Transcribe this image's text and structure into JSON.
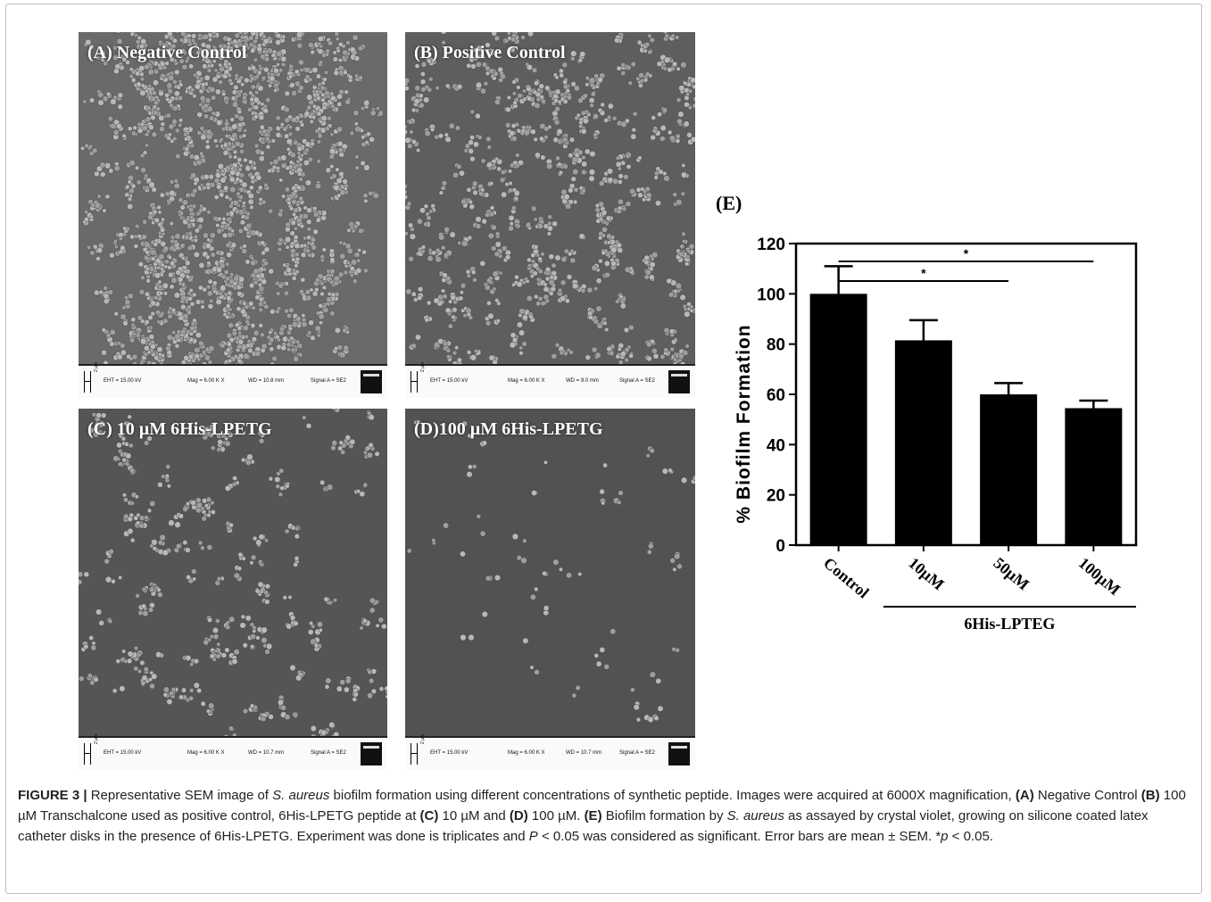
{
  "panels": [
    {
      "label": "(A) Negative Control",
      "databar": {
        "eht": "EHT = 15.00 kV",
        "mag": "Mag = 6.00 K X",
        "wd": "WD = 10.8 mm",
        "signal": "Signal A = SE2",
        "scale": "2 µm"
      }
    },
    {
      "label": "(B) Positive Control",
      "databar": {
        "eht": "EHT = 15.00 kV",
        "mag": "Mag = 6.00 K X",
        "wd": "WD = 9.0 mm",
        "signal": "Signal A = SE2",
        "scale": "2 µm"
      }
    },
    {
      "label": "(C) 10 µM 6His-LPETG",
      "databar": {
        "eht": "EHT = 15.00 kV",
        "mag": "Mag = 6.00 K X",
        "wd": "WD = 10.7 mm",
        "signal": "Signal A = SE2",
        "scale": "2 µm"
      }
    },
    {
      "label": "(D)100 µM 6His-LPETG",
      "databar": {
        "eht": "EHT = 15.00 kV",
        "mag": "Mag = 6.00 K X",
        "wd": "WD = 10.7 mm",
        "signal": "Signal A = SE2",
        "scale": "2 µm"
      }
    }
  ],
  "chart_data": {
    "type": "bar",
    "panel_label": "(E)",
    "ylabel": "% Biofilm Formation",
    "ylim": [
      0,
      120
    ],
    "yticks": [
      0,
      20,
      40,
      60,
      80,
      100,
      120
    ],
    "categories": [
      "Control",
      "10µM",
      "50µM",
      "100µM"
    ],
    "values": [
      100,
      81.5,
      60,
      54.5
    ],
    "errors": [
      11,
      8,
      4.5,
      3
    ],
    "group_label": "6His-LPTEG",
    "significance": [
      {
        "from": "Control",
        "to": "50µM",
        "label": "*"
      },
      {
        "from": "Control",
        "to": "100µM",
        "label": "*"
      }
    ],
    "bar_color": "#000000"
  },
  "caption": {
    "figure_label": "FIGURE 3 |",
    "segments": [
      {
        "t": " Representative SEM image of ",
        "s": "n"
      },
      {
        "t": "S. aureus",
        "s": "i"
      },
      {
        "t": " biofilm formation using different concentrations of synthetic peptide. Images were acquired at 6000X magnification, ",
        "s": "n"
      },
      {
        "t": "(A)",
        "s": "b"
      },
      {
        "t": " Negative Control ",
        "s": "n"
      },
      {
        "t": "(B)",
        "s": "b"
      },
      {
        "t": " 100 µM Transchalcone used as positive control, 6His-LPETG peptide at ",
        "s": "n"
      },
      {
        "t": "(C)",
        "s": "b"
      },
      {
        "t": " 10 µM and ",
        "s": "n"
      },
      {
        "t": "(D)",
        "s": "b"
      },
      {
        "t": " 100 µM. ",
        "s": "n"
      },
      {
        "t": "(E)",
        "s": "b"
      },
      {
        "t": " Biofilm formation by ",
        "s": "n"
      },
      {
        "t": "S. aureus",
        "s": "i"
      },
      {
        "t": " as assayed by crystal violet, growing on silicone coated latex catheter disks in the presence of 6His-LPETG. Experiment was done is triplicates and ",
        "s": "n"
      },
      {
        "t": "P",
        "s": "i"
      },
      {
        "t": " < 0.05 was considered as significant. Error bars are mean ± SEM. *",
        "s": "n"
      },
      {
        "t": "p",
        "s": "i"
      },
      {
        "t": " < 0.05.",
        "s": "n"
      }
    ]
  }
}
